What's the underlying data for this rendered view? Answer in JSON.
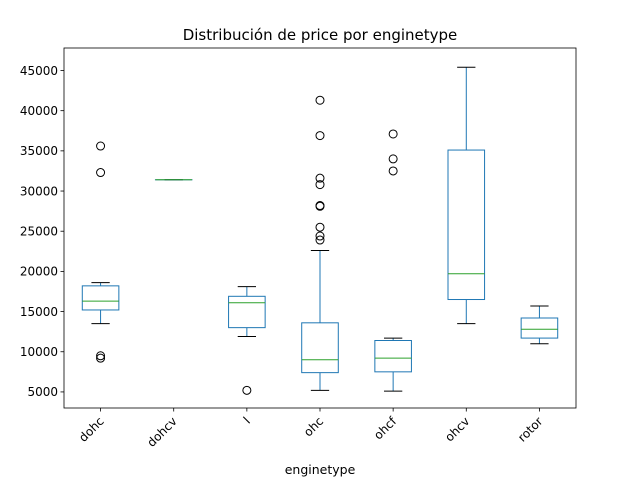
{
  "chart_data": {
    "type": "box",
    "title": "Distribución de price por enginetype",
    "xlabel": "enginetype",
    "ylabel": "",
    "ylim": [
      3000,
      47800
    ],
    "yticks": [
      5000,
      10000,
      15000,
      20000,
      25000,
      30000,
      35000,
      40000,
      45000
    ],
    "categories": [
      "dohc",
      "dohcv",
      "l",
      "ohc",
      "ohcf",
      "ohcv",
      "rotor"
    ],
    "grid": false,
    "legend": "none",
    "colors": {
      "box": "#1f77b4",
      "median": "#2ca02c",
      "whisker_cap": "#000000",
      "flier": "#000000"
    },
    "boxes": [
      {
        "category": "dohc",
        "whislo": 13500,
        "q1": 15200,
        "median": 16300,
        "q3": 18200,
        "whishi": 18600,
        "fliers": [
          9200,
          9500,
          32300,
          35600
        ]
      },
      {
        "category": "dohcv",
        "whislo": 31400,
        "q1": 31400,
        "median": 31400,
        "q3": 31400,
        "whishi": 31400,
        "fliers": []
      },
      {
        "category": "l",
        "whislo": 11900,
        "q1": 13000,
        "median": 16100,
        "q3": 16900,
        "whishi": 18100,
        "fliers": [
          5200
        ]
      },
      {
        "category": "ohc",
        "whislo": 5200,
        "q1": 7400,
        "median": 9000,
        "q3": 13600,
        "whishi": 22600,
        "fliers": [
          23900,
          24400,
          25500,
          28100,
          28200,
          30800,
          31600,
          36900,
          41300
        ]
      },
      {
        "category": "ohcf",
        "whislo": 5100,
        "q1": 7500,
        "median": 9200,
        "q3": 11400,
        "whishi": 11700,
        "fliers": [
          32500,
          34000,
          37100
        ]
      },
      {
        "category": "ohcv",
        "whislo": 13500,
        "q1": 16500,
        "median": 19700,
        "q3": 35100,
        "whishi": 45400,
        "fliers": []
      },
      {
        "category": "rotor",
        "whislo": 11000,
        "q1": 11700,
        "median": 12800,
        "q3": 14200,
        "whishi": 15700,
        "fliers": []
      }
    ]
  }
}
